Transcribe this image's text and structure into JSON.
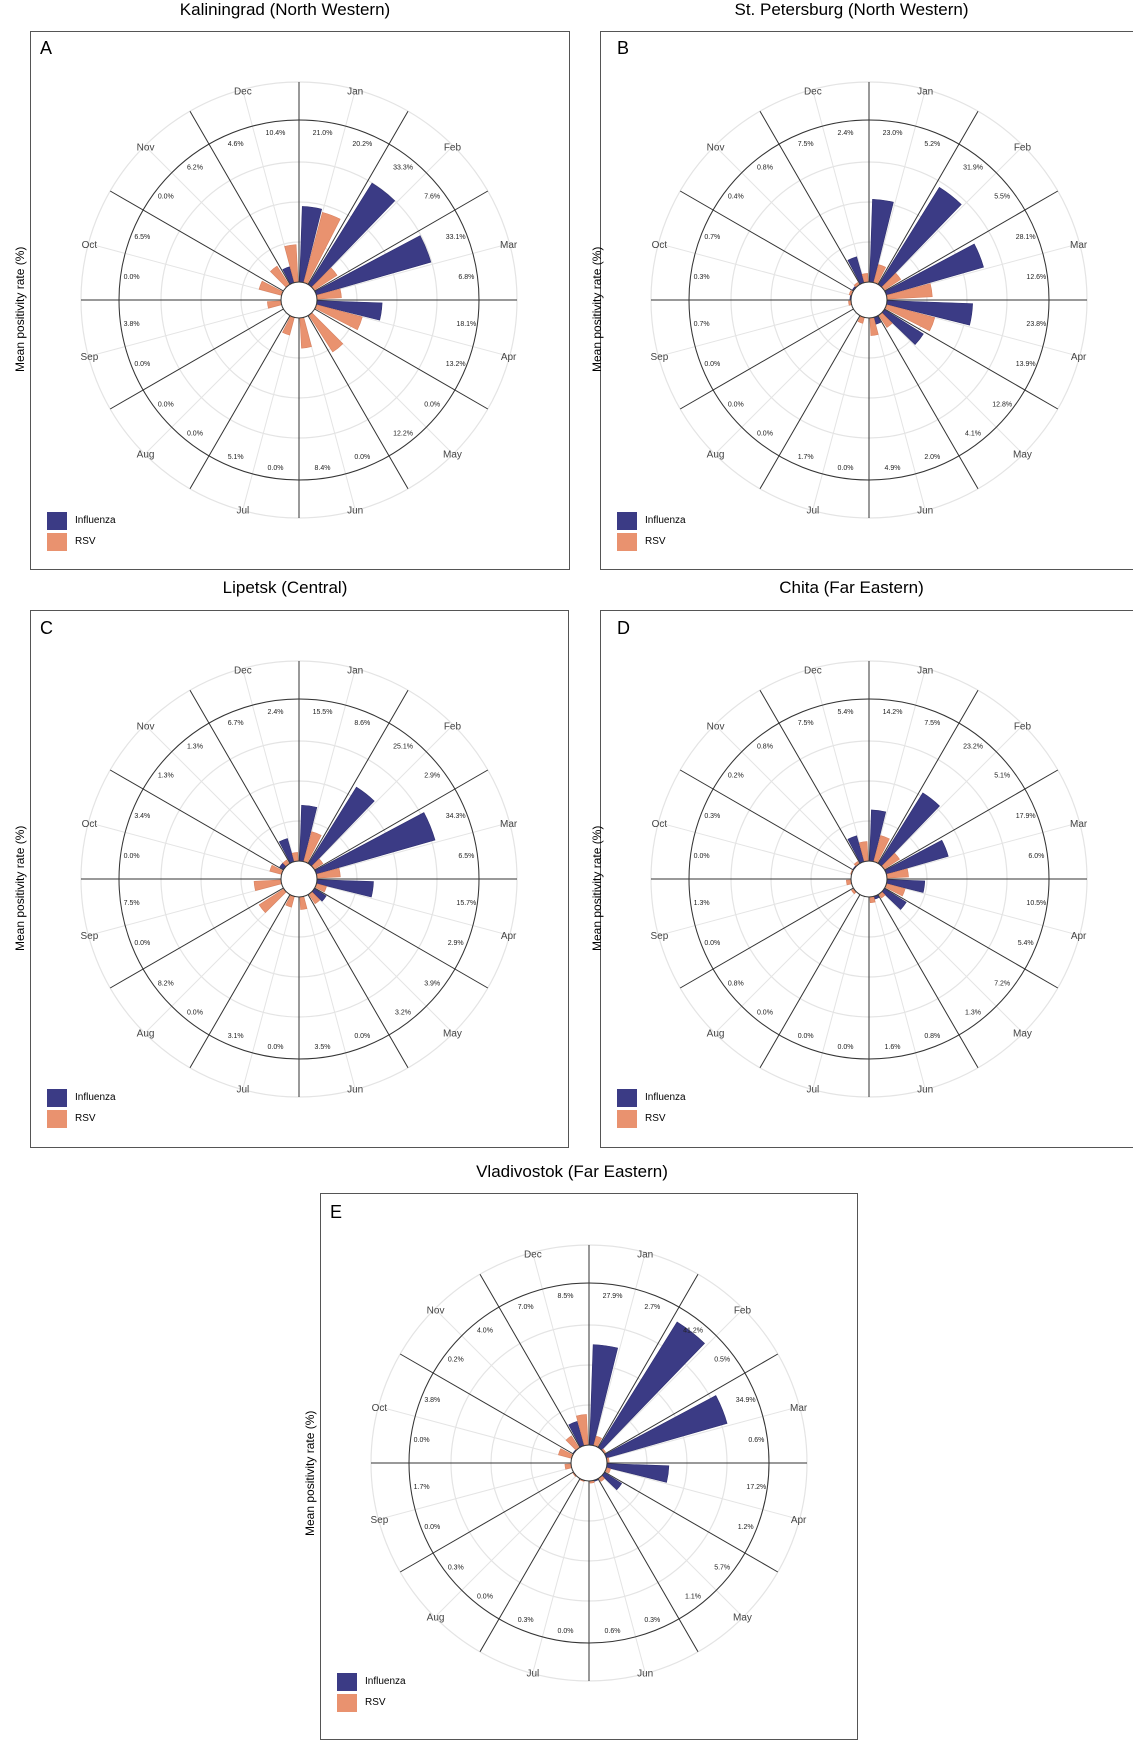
{
  "colors": {
    "influenza": "#3b3b85",
    "rsv": "#e9926f",
    "grid": "#e4e4e4",
    "line": "#333333"
  },
  "legend": {
    "influenza": "Influenza",
    "rsv": "RSV"
  },
  "ylabel": "Mean positivity rate (%)",
  "months": [
    "Jan",
    "Feb",
    "Mar",
    "Apr",
    "May",
    "Jun",
    "Jul",
    "Aug",
    "Sep",
    "Oct",
    "Nov",
    "Dec"
  ],
  "chart_data": [
    {
      "type": "polar-bar",
      "letter": "A",
      "title": "Kaliningrad (North Western)",
      "series": [
        {
          "name": "Influenza",
          "values": [
            21.0,
            33.3,
            33.1,
            18.1,
            0.0,
            0.0,
            0.0,
            0.0,
            0.0,
            0.0,
            0.0,
            4.6
          ]
        },
        {
          "name": "RSV",
          "values": [
            20.2,
            7.6,
            6.8,
            13.2,
            12.2,
            8.4,
            5.1,
            0.0,
            3.8,
            6.5,
            6.2,
            10.4
          ]
        }
      ],
      "labels": {
        "influenza": [
          "21.0%",
          "33.3%",
          "33.1%",
          "18.1%",
          "0.0%",
          "0.0%",
          "0.0%",
          "0.0%",
          "0.0%",
          "0.0%",
          "0.0%",
          "4.6%"
        ],
        "rsv": [
          "20.2%",
          "7.6%",
          "6.8%",
          "13.2%",
          "12.2%",
          "8.4%",
          "5.1%",
          "0.0%",
          "3.8%",
          "6.5%",
          "6.2%",
          "10.4%"
        ]
      }
    },
    {
      "type": "polar-bar",
      "letter": "B",
      "title": "St. Petersburg (North Western)",
      "series": [
        {
          "name": "Influenza",
          "values": [
            23.0,
            31.9,
            28.1,
            23.8,
            12.8,
            2.0,
            0.0,
            0.0,
            0.0,
            0.3,
            0.4,
            7.5
          ]
        },
        {
          "name": "RSV",
          "values": [
            5.2,
            5.5,
            12.6,
            13.9,
            4.1,
            4.9,
            1.7,
            0.0,
            0.7,
            0.7,
            0.8,
            2.4
          ]
        }
      ],
      "labels": {
        "influenza": [
          "23.0%",
          "31.9%",
          "28.1%",
          "23.8%",
          "12.8%",
          "2.0%",
          "0.0%",
          "0.0%",
          "0.0%",
          "0.3%",
          "0.4%",
          "7.5%"
        ],
        "rsv": [
          "5.2%",
          "5.5%",
          "12.6%",
          "13.9%",
          "4.1%",
          "4.9%",
          "1.7%",
          "0.0%",
          "0.7%",
          "0.7%",
          "0.8%",
          "2.4%"
        ]
      }
    },
    {
      "type": "polar-bar",
      "letter": "C",
      "title": "Lipetsk (Central)",
      "series": [
        {
          "name": "Influenza",
          "values": [
            15.5,
            25.1,
            34.3,
            15.7,
            3.9,
            0.0,
            0.0,
            0.0,
            0.0,
            0.0,
            1.3,
            6.7
          ]
        },
        {
          "name": "RSV",
          "values": [
            8.6,
            2.9,
            6.5,
            2.9,
            3.2,
            3.5,
            3.1,
            8.2,
            7.5,
            3.4,
            1.3,
            2.4
          ]
        }
      ],
      "labels": {
        "influenza": [
          "15.5%",
          "25.1%",
          "34.3%",
          "15.7%",
          "3.9%",
          "0.0%",
          "0.0%",
          "0.0%",
          "0.0%",
          "0.0%",
          "1.3%",
          "6.7%"
        ],
        "rsv": [
          "8.6%",
          "2.9%",
          "6.5%",
          "2.9%",
          "3.2%",
          "3.5%",
          "3.1%",
          "8.2%",
          "7.5%",
          "3.4%",
          "1.3%",
          "2.4%"
        ]
      }
    },
    {
      "type": "polar-bar",
      "letter": "D",
      "title": "Chita (Far Eastern)",
      "series": [
        {
          "name": "Influenza",
          "values": [
            14.2,
            23.2,
            17.9,
            10.5,
            7.2,
            0.8,
            0.0,
            0.0,
            0.0,
            0.0,
            0.2,
            7.5
          ]
        },
        {
          "name": "RSV",
          "values": [
            7.5,
            5.1,
            6.0,
            5.4,
            1.3,
            1.6,
            0.0,
            0.8,
            1.3,
            0.3,
            0.8,
            5.4
          ]
        }
      ],
      "labels": {
        "influenza": [
          "14.2%",
          "23.2%",
          "17.9%",
          "10.5%",
          "7.2%",
          "0.8%",
          "0.0%",
          "0.0%",
          "0.0%",
          "0.0%",
          "0.2%",
          "7.5%"
        ],
        "rsv": [
          "7.5%",
          "5.1%",
          "6.0%",
          "5.4%",
          "1.3%",
          "1.6%",
          "0.0%",
          "0.8%",
          "1.3%",
          "0.3%",
          "0.8%",
          "5.4%"
        ]
      }
    },
    {
      "type": "polar-bar",
      "letter": "E",
      "title": "Vladivostok (Far Eastern)",
      "series": [
        {
          "name": "Influenza",
          "values": [
            27.9,
            41.2,
            34.9,
            17.2,
            5.7,
            0.3,
            0.0,
            0.0,
            0.0,
            0.0,
            0.2,
            7.0
          ]
        },
        {
          "name": "RSV",
          "values": [
            2.7,
            0.5,
            0.6,
            1.2,
            1.1,
            0.6,
            0.3,
            0.3,
            1.7,
            3.8,
            4.0,
            8.5
          ]
        }
      ],
      "labels": {
        "influenza": [
          "27.9%",
          "41.2%",
          "34.9%",
          "17.2%",
          "5.7%",
          "0.3%",
          "0.0%",
          "0.0%",
          "0.0%",
          "0.0%",
          "0.2%",
          "7.0%"
        ],
        "rsv": [
          "2.7%",
          "0.5%",
          "0.6%",
          "1.2%",
          "1.1%",
          "0.6%",
          "0.3%",
          "0.3%",
          "1.7%",
          "3.8%",
          "4.0%",
          "8.5%"
        ]
      }
    }
  ]
}
